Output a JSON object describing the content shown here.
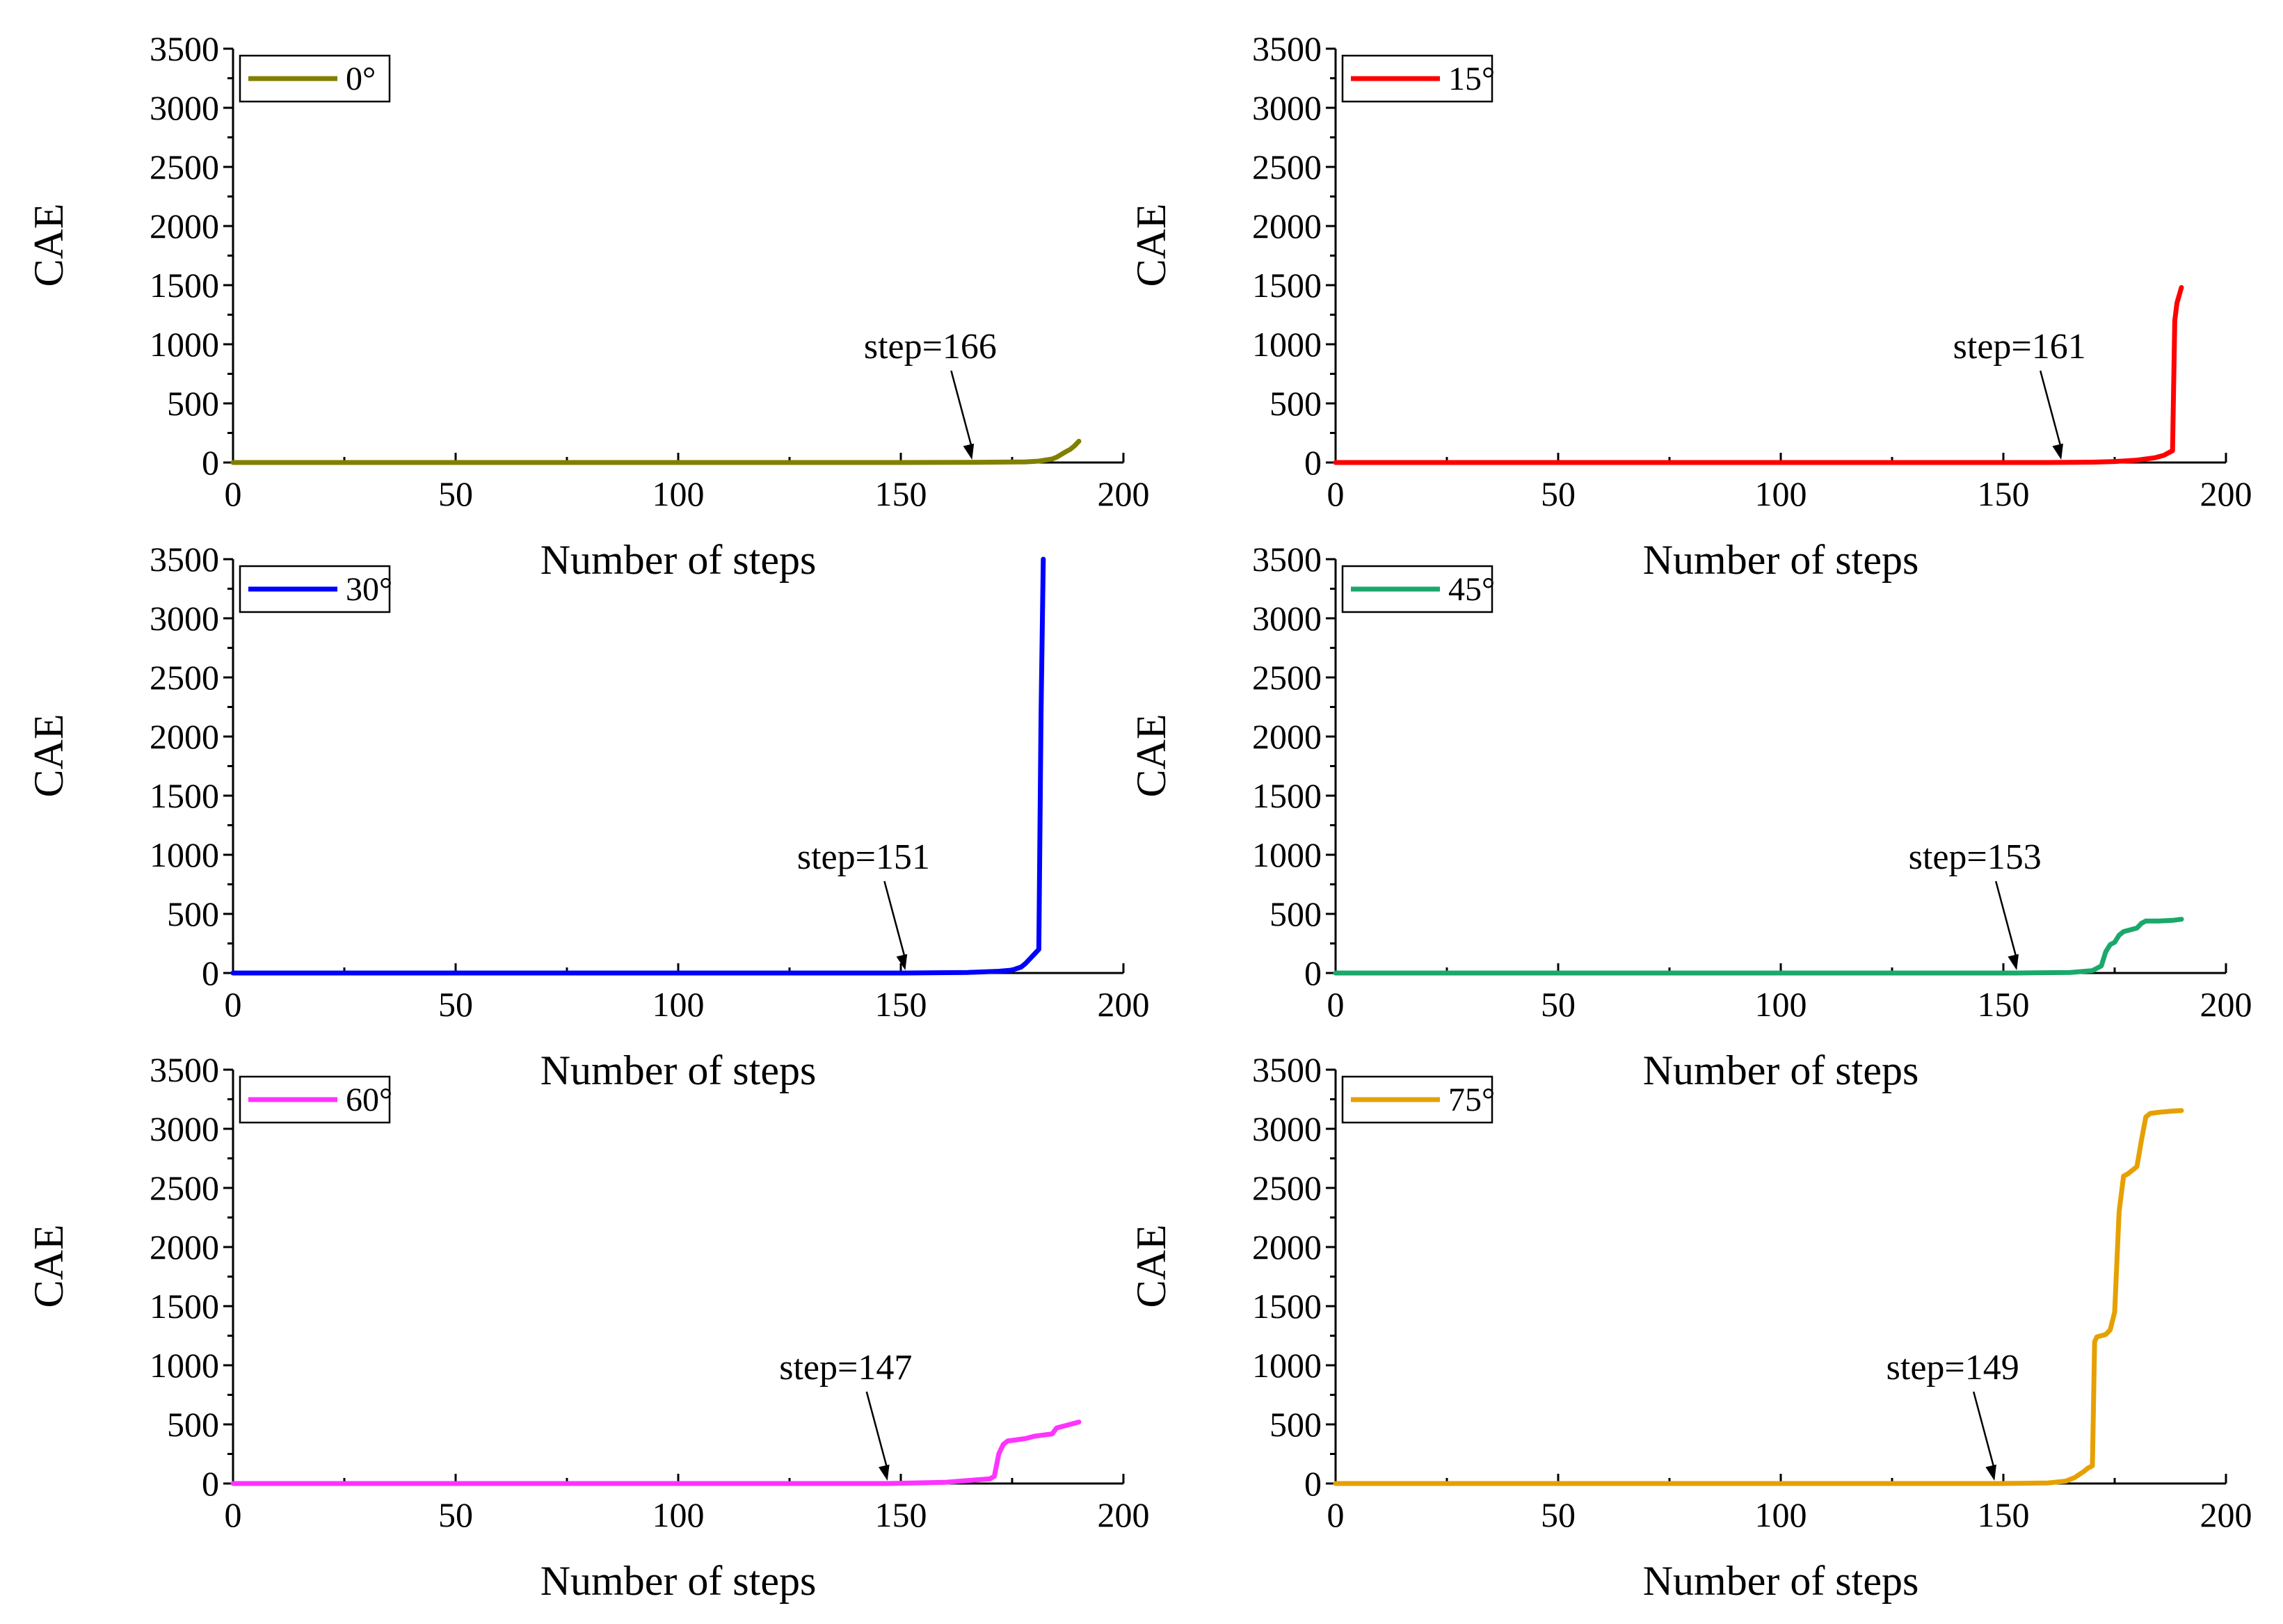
{
  "chart_data": [
    {
      "type": "line",
      "xlabel": "Number of steps",
      "ylabel": "CAE",
      "xlim": [
        0,
        200
      ],
      "ylim": [
        0,
        3500
      ],
      "xticks": [
        0,
        50,
        100,
        150,
        200
      ],
      "yticks": [
        0,
        500,
        1000,
        1500,
        2000,
        2500,
        3000,
        3500
      ],
      "xtick_labels": [
        "0",
        "50",
        "100",
        "150",
        "200"
      ],
      "ytick_labels": [
        "0",
        "500",
        "1000",
        "1500",
        "2000",
        "2500",
        "3000",
        "3500"
      ],
      "legend_position": "top-left",
      "series": [
        {
          "name": "0°",
          "color": "#808000",
          "x": [
            0,
            150,
            166,
            178,
            181,
            184,
            185,
            187,
            188,
            189,
            190
          ],
          "y": [
            0,
            0,
            2,
            5,
            12,
            30,
            45,
            90,
            110,
            140,
            180
          ]
        }
      ],
      "annotation": {
        "text": "step=166",
        "x": 166,
        "y": 0
      }
    },
    {
      "type": "line",
      "xlabel": "Number of steps",
      "ylabel": "CAE",
      "xlim": [
        0,
        200
      ],
      "ylim": [
        0,
        3500
      ],
      "xticks": [
        0,
        50,
        100,
        150,
        200
      ],
      "yticks": [
        0,
        500,
        1000,
        1500,
        2000,
        2500,
        3000,
        3500
      ],
      "xtick_labels": [
        "0",
        "50",
        "100",
        "150",
        "200"
      ],
      "ytick_labels": [
        "0",
        "500",
        "1000",
        "1500",
        "2000",
        "2500",
        "3000",
        "3500"
      ],
      "legend_position": "top-left",
      "series": [
        {
          "name": "15°",
          "color": "#ff0000",
          "x": [
            0,
            160,
            170,
            175,
            180,
            184,
            186,
            187,
            188,
            188.5,
            189,
            190
          ],
          "y": [
            0,
            0,
            3,
            8,
            20,
            40,
            60,
            80,
            100,
            1200,
            1350,
            1480
          ]
        }
      ],
      "annotation": {
        "text": "step=161",
        "x": 163,
        "y": 0
      }
    },
    {
      "type": "line",
      "xlabel": "Number of steps",
      "ylabel": "CAE",
      "xlim": [
        0,
        200
      ],
      "ylim": [
        0,
        3500
      ],
      "xticks": [
        0,
        50,
        100,
        150,
        200
      ],
      "yticks": [
        0,
        500,
        1000,
        1500,
        2000,
        2500,
        3000,
        3500
      ],
      "xtick_labels": [
        "0",
        "50",
        "100",
        "150",
        "200"
      ],
      "ytick_labels": [
        "0",
        "500",
        "1000",
        "1500",
        "2000",
        "2500",
        "3000",
        "3500"
      ],
      "legend_position": "top-left",
      "series": [
        {
          "name": "30°",
          "color": "#0000ff",
          "x": [
            0,
            151,
            165,
            172,
            175,
            177,
            178,
            179,
            180,
            181,
            181.5,
            182
          ],
          "y": [
            0,
            0,
            5,
            15,
            25,
            50,
            80,
            120,
            160,
            200,
            2200,
            3500
          ]
        }
      ],
      "annotation": {
        "text": "step=151",
        "x": 151,
        "y": 0
      }
    },
    {
      "type": "line",
      "xlabel": "Number of steps",
      "ylabel": "CAE",
      "xlim": [
        0,
        200
      ],
      "ylim": [
        0,
        3500
      ],
      "xticks": [
        0,
        50,
        100,
        150,
        200
      ],
      "yticks": [
        0,
        500,
        1000,
        1500,
        2000,
        2500,
        3000,
        3500
      ],
      "xtick_labels": [
        "0",
        "50",
        "100",
        "150",
        "200"
      ],
      "ytick_labels": [
        "0",
        "500",
        "1000",
        "1500",
        "2000",
        "2500",
        "3000",
        "3500"
      ],
      "legend_position": "top-left",
      "series": [
        {
          "name": "45°",
          "color": "#1aa86b",
          "x": [
            0,
            153,
            165,
            170,
            172,
            173,
            174,
            175,
            176,
            177,
            178,
            180,
            181,
            182,
            185,
            188,
            190
          ],
          "y": [
            0,
            0,
            5,
            20,
            60,
            180,
            240,
            260,
            320,
            350,
            360,
            380,
            420,
            440,
            440,
            445,
            455
          ]
        }
      ],
      "annotation": {
        "text": "step=153",
        "x": 153,
        "y": 0
      }
    },
    {
      "type": "line",
      "xlabel": "Number of steps",
      "ylabel": "CAE",
      "xlim": [
        0,
        200
      ],
      "ylim": [
        0,
        3500
      ],
      "xticks": [
        0,
        50,
        100,
        150,
        200
      ],
      "yticks": [
        0,
        500,
        1000,
        1500,
        2000,
        2500,
        3000,
        3500
      ],
      "xtick_labels": [
        "0",
        "50",
        "100",
        "150",
        "200"
      ],
      "ytick_labels": [
        "0",
        "500",
        "1000",
        "1500",
        "2000",
        "2500",
        "3000",
        "3500"
      ],
      "legend_position": "top-left",
      "series": [
        {
          "name": "60°",
          "color": "#ff33ff",
          "x": [
            0,
            147,
            160,
            165,
            170,
            171,
            172,
            173,
            174,
            176,
            178,
            180,
            182,
            184,
            185,
            187,
            190
          ],
          "y": [
            0,
            0,
            10,
            25,
            40,
            60,
            250,
            330,
            360,
            370,
            380,
            400,
            410,
            420,
            470,
            490,
            520
          ]
        }
      ],
      "annotation": {
        "text": "step=147",
        "x": 147,
        "y": 0
      }
    },
    {
      "type": "line",
      "xlabel": "Number of steps",
      "ylabel": "CAE",
      "xlim": [
        0,
        200
      ],
      "ylim": [
        0,
        3500
      ],
      "xticks": [
        0,
        50,
        100,
        150,
        200
      ],
      "yticks": [
        0,
        500,
        1000,
        1500,
        2000,
        2500,
        3000,
        3500
      ],
      "xtick_labels": [
        "0",
        "50",
        "100",
        "150",
        "200"
      ],
      "ytick_labels": [
        "0",
        "500",
        "1000",
        "1500",
        "2000",
        "2500",
        "3000",
        "3500"
      ],
      "legend_position": "top-left",
      "series": [
        {
          "name": "75°",
          "color": "#e6a000",
          "x": [
            0,
            149,
            160,
            164,
            166,
            168,
            169,
            170,
            170.5,
            171,
            173,
            174,
            175,
            176,
            177,
            178,
            180,
            181,
            182,
            183,
            185,
            188,
            190
          ],
          "y": [
            0,
            0,
            5,
            20,
            50,
            100,
            130,
            150,
            1200,
            1240,
            1260,
            1300,
            1450,
            2300,
            2600,
            2620,
            2680,
            2900,
            3100,
            3130,
            3140,
            3150,
            3155
          ]
        }
      ],
      "annotation": {
        "text": "step=149",
        "x": 148,
        "y": 0
      }
    }
  ]
}
